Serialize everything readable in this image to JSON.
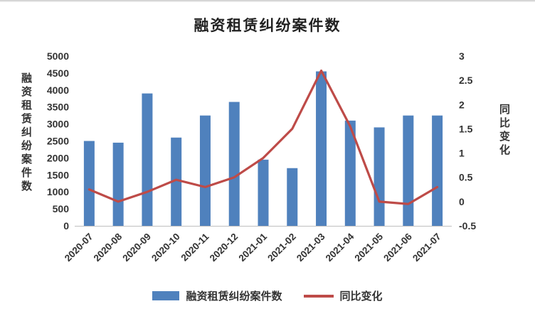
{
  "chart_data": {
    "type": "bar-line-combo",
    "title": "融资租赁纠纷案件数",
    "categories": [
      "2020-07",
      "2020-08",
      "2020-09",
      "2020-10",
      "2020-11",
      "2020-12",
      "2021-01",
      "2021-02",
      "2021-03",
      "2021-04",
      "2021-05",
      "2021-06",
      "2021-07"
    ],
    "series": [
      {
        "name": "融资租赁纠纷案件数",
        "type": "bar",
        "axis": "left",
        "color": "#4F81BD",
        "values": [
          2500,
          2450,
          3900,
          2600,
          3250,
          3650,
          1950,
          1700,
          4550,
          3100,
          2900,
          3250,
          3250
        ]
      },
      {
        "name": "同比变化",
        "type": "line",
        "axis": "right",
        "color": "#BE4B48",
        "values": [
          0.25,
          0.0,
          0.2,
          0.45,
          0.3,
          0.5,
          0.9,
          1.5,
          2.7,
          1.55,
          0.0,
          -0.05,
          0.3
        ]
      }
    ],
    "left_axis": {
      "label": "融资租赁纠纷案件数",
      "min": 0,
      "max": 5000,
      "step": 500
    },
    "right_axis": {
      "label": "同比变化",
      "min": -0.5,
      "max": 3,
      "step": 0.5
    },
    "legend_position": "bottom",
    "grid": "off"
  }
}
